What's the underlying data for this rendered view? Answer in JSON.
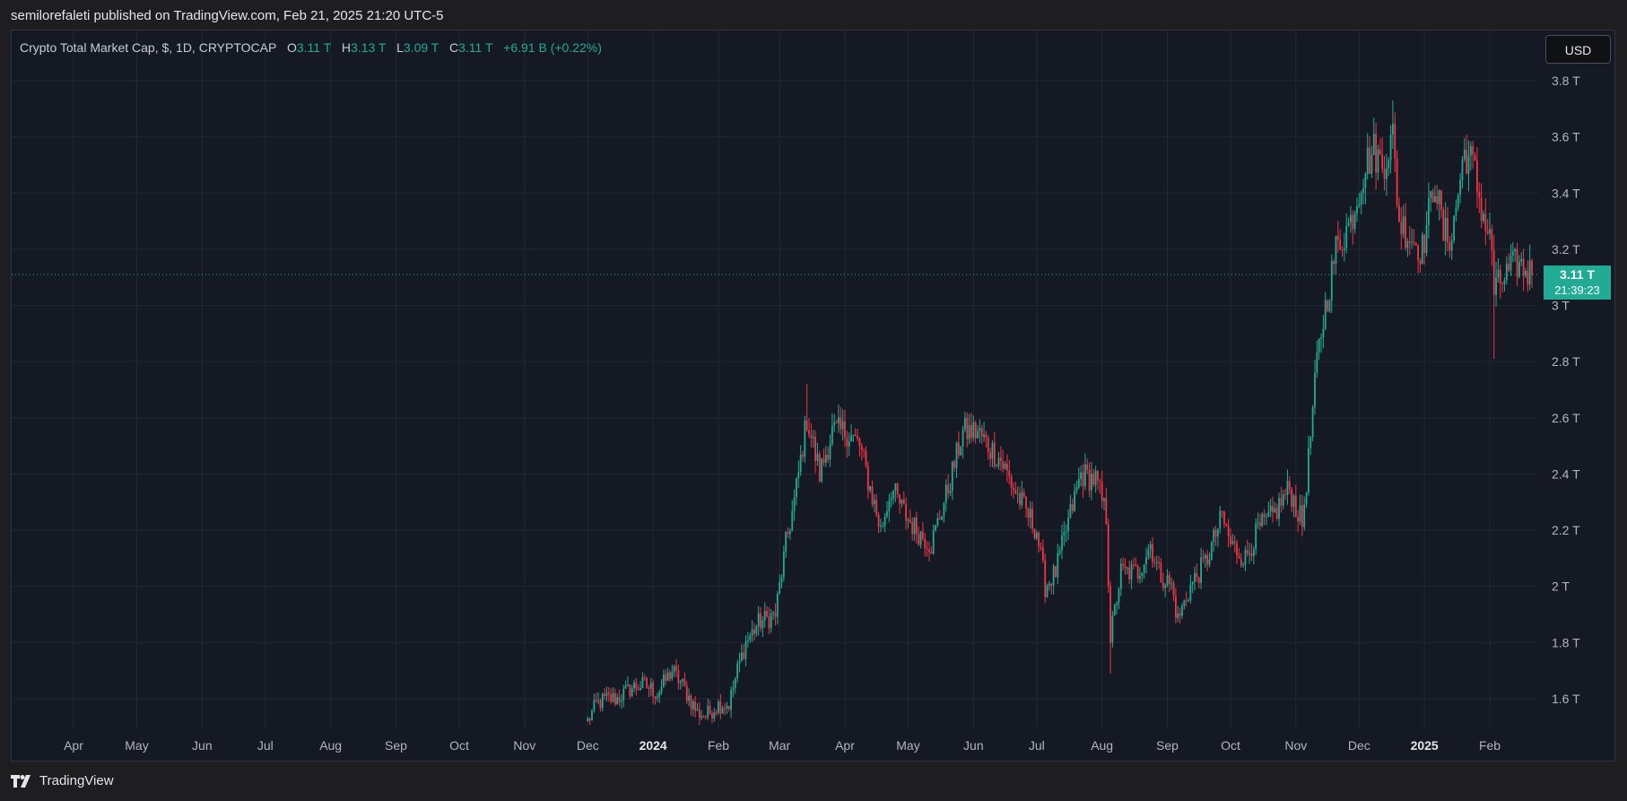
{
  "publish_line": "semilorefaleti published on TradingView.com, Feb 21, 2025 21:20 UTC-5",
  "legend": {
    "title": "Crypto Total Market Cap, $, 1D, CRYPTOCAP",
    "open_label": "O",
    "open": "3.11 T",
    "high_label": "H",
    "high": "3.13 T",
    "low_label": "L",
    "low": "3.09 T",
    "close_label": "C",
    "close": "3.11 T",
    "change": "+6.91 B (+0.22%)"
  },
  "currency": "USD",
  "last_price": {
    "value": "3.11 T",
    "countdown": "21:39:23",
    "color": "#22ab94"
  },
  "footer": {
    "brand": "TradingView",
    "icon": "tradingview-logo-icon"
  },
  "colors": {
    "up": "#22ab94",
    "down": "#f23645",
    "background": "#151924",
    "grid": "#232733"
  },
  "chart_data": {
    "type": "candlestick",
    "title": "Crypto Total Market Cap, $, 1D, CRYPTOCAP",
    "unit": "USD (trillions)",
    "ylim": [
      1.5,
      3.85
    ],
    "y_ticks": [
      {
        "value": 1.6,
        "label": "1.6 T"
      },
      {
        "value": 1.8,
        "label": "1.8 T"
      },
      {
        "value": 2.0,
        "label": "2 T"
      },
      {
        "value": 2.2,
        "label": "2.2 T"
      },
      {
        "value": 2.4,
        "label": "2.4 T"
      },
      {
        "value": 2.6,
        "label": "2.6 T"
      },
      {
        "value": 2.8,
        "label": "2.8 T"
      },
      {
        "value": 3.0,
        "label": "3 T"
      },
      {
        "value": 3.2,
        "label": "3.2 T"
      },
      {
        "value": 3.4,
        "label": "3.4 T"
      },
      {
        "value": 3.6,
        "label": "3.6 T"
      },
      {
        "value": 3.8,
        "label": "3.8 T"
      }
    ],
    "x_ticks": [
      {
        "date": "2023-04-01",
        "label": "Apr",
        "bold": false
      },
      {
        "date": "2023-05-01",
        "label": "May",
        "bold": false
      },
      {
        "date": "2023-06-01",
        "label": "Jun",
        "bold": false
      },
      {
        "date": "2023-07-01",
        "label": "Jul",
        "bold": false
      },
      {
        "date": "2023-08-01",
        "label": "Aug",
        "bold": false
      },
      {
        "date": "2023-09-01",
        "label": "Sep",
        "bold": false
      },
      {
        "date": "2023-10-01",
        "label": "Oct",
        "bold": false
      },
      {
        "date": "2023-11-01",
        "label": "Nov",
        "bold": false
      },
      {
        "date": "2023-12-01",
        "label": "Dec",
        "bold": false
      },
      {
        "date": "2024-01-01",
        "label": "2024",
        "bold": true
      },
      {
        "date": "2024-02-01",
        "label": "Feb",
        "bold": false
      },
      {
        "date": "2024-03-01",
        "label": "Mar",
        "bold": false
      },
      {
        "date": "2024-04-01",
        "label": "Apr",
        "bold": false
      },
      {
        "date": "2024-05-01",
        "label": "May",
        "bold": false
      },
      {
        "date": "2024-06-01",
        "label": "Jun",
        "bold": false
      },
      {
        "date": "2024-07-01",
        "label": "Jul",
        "bold": false
      },
      {
        "date": "2024-08-01",
        "label": "Aug",
        "bold": false
      },
      {
        "date": "2024-09-01",
        "label": "Sep",
        "bold": false
      },
      {
        "date": "2024-10-01",
        "label": "Oct",
        "bold": false
      },
      {
        "date": "2024-11-01",
        "label": "Nov",
        "bold": false
      },
      {
        "date": "2024-12-01",
        "label": "Dec",
        "bold": false
      },
      {
        "date": "2025-01-01",
        "label": "2025",
        "bold": true
      },
      {
        "date": "2025-02-01",
        "label": "Feb",
        "bold": false
      }
    ],
    "close_keypoints": [
      [
        "2023-12-01",
        1.52
      ],
      [
        "2023-12-05",
        1.58
      ],
      [
        "2023-12-10",
        1.6
      ],
      [
        "2023-12-15",
        1.6
      ],
      [
        "2023-12-22",
        1.64
      ],
      [
        "2023-12-28",
        1.65
      ],
      [
        "2024-01-03",
        1.62
      ],
      [
        "2024-01-10",
        1.7
      ],
      [
        "2024-01-14",
        1.66
      ],
      [
        "2024-01-22",
        1.55
      ],
      [
        "2024-01-26",
        1.54
      ],
      [
        "2024-02-01",
        1.58
      ],
      [
        "2024-02-06",
        1.58
      ],
      [
        "2024-02-10",
        1.7
      ],
      [
        "2024-02-14",
        1.8
      ],
      [
        "2024-02-20",
        1.87
      ],
      [
        "2024-02-28",
        1.9
      ],
      [
        "2024-03-04",
        2.15
      ],
      [
        "2024-03-08",
        2.3
      ],
      [
        "2024-03-14",
        2.6
      ],
      [
        "2024-03-20",
        2.4
      ],
      [
        "2024-03-26",
        2.55
      ],
      [
        "2024-04-02",
        2.55
      ],
      [
        "2024-04-08",
        2.5
      ],
      [
        "2024-04-13",
        2.35
      ],
      [
        "2024-04-18",
        2.2
      ],
      [
        "2024-04-23",
        2.35
      ],
      [
        "2024-04-30",
        2.25
      ],
      [
        "2024-05-05",
        2.2
      ],
      [
        "2024-05-12",
        2.15
      ],
      [
        "2024-05-20",
        2.35
      ],
      [
        "2024-05-27",
        2.55
      ],
      [
        "2024-06-03",
        2.55
      ],
      [
        "2024-06-08",
        2.5
      ],
      [
        "2024-06-14",
        2.45
      ],
      [
        "2024-06-20",
        2.35
      ],
      [
        "2024-06-25",
        2.28
      ],
      [
        "2024-07-01",
        2.2
      ],
      [
        "2024-07-05",
        2.0
      ],
      [
        "2024-07-10",
        2.05
      ],
      [
        "2024-07-15",
        2.2
      ],
      [
        "2024-07-22",
        2.4
      ],
      [
        "2024-07-29",
        2.38
      ],
      [
        "2024-08-03",
        2.25
      ],
      [
        "2024-08-05",
        1.82
      ],
      [
        "2024-08-10",
        2.05
      ],
      [
        "2024-08-18",
        2.05
      ],
      [
        "2024-08-24",
        2.15
      ],
      [
        "2024-08-28",
        2.05
      ],
      [
        "2024-09-03",
        2.0
      ],
      [
        "2024-09-06",
        1.88
      ],
      [
        "2024-09-12",
        2.0
      ],
      [
        "2024-09-20",
        2.1
      ],
      [
        "2024-09-27",
        2.25
      ],
      [
        "2024-10-01",
        2.15
      ],
      [
        "2024-10-08",
        2.1
      ],
      [
        "2024-10-14",
        2.2
      ],
      [
        "2024-10-21",
        2.25
      ],
      [
        "2024-10-29",
        2.35
      ],
      [
        "2024-11-04",
        2.22
      ],
      [
        "2024-11-07",
        2.45
      ],
      [
        "2024-11-11",
        2.8
      ],
      [
        "2024-11-14",
        2.95
      ],
      [
        "2024-11-20",
        3.2
      ],
      [
        "2024-11-27",
        3.3
      ],
      [
        "2024-12-04",
        3.5
      ],
      [
        "2024-12-08",
        3.55
      ],
      [
        "2024-12-12",
        3.5
      ],
      [
        "2024-12-17",
        3.6
      ],
      [
        "2024-12-20",
        3.3
      ],
      [
        "2024-12-25",
        3.25
      ],
      [
        "2024-12-31",
        3.2
      ],
      [
        "2025-01-06",
        3.45
      ],
      [
        "2025-01-10",
        3.25
      ],
      [
        "2025-01-14",
        3.25
      ],
      [
        "2025-01-20",
        3.55
      ],
      [
        "2025-01-24",
        3.5
      ],
      [
        "2025-01-28",
        3.35
      ],
      [
        "2025-02-02",
        3.2
      ],
      [
        "2025-02-03",
        3.05
      ],
      [
        "2025-02-08",
        3.1
      ],
      [
        "2025-02-14",
        3.15
      ],
      [
        "2025-02-21",
        3.11
      ]
    ],
    "last_close": 3.11,
    "extremes": {
      "ath_high": [
        "2024-12-17",
        3.73
      ],
      "feb3_low": [
        "2025-02-03",
        2.81
      ],
      "aug5_low": [
        "2024-08-05",
        1.69
      ],
      "mar14_high": [
        "2024-03-14",
        2.72
      ],
      "jan_low": [
        "2024-01-23",
        1.48
      ]
    }
  }
}
